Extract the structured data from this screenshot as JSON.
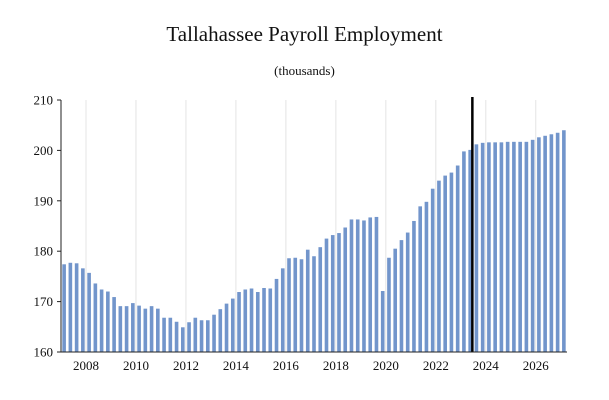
{
  "chart_data": {
    "type": "bar",
    "title": "Tallahassee Payroll Employment",
    "subtitle": "(thousands)",
    "xlabel": "",
    "ylabel": "",
    "ylim": [
      160,
      210
    ],
    "yticks": [
      160,
      170,
      180,
      190,
      200,
      210
    ],
    "xtick_labels": [
      "2008",
      "2010",
      "2012",
      "2014",
      "2016",
      "2018",
      "2020",
      "2022",
      "2024",
      "2026"
    ],
    "grid": "vertical",
    "bar_color": "#7295cb",
    "forecast_marker_color": "#000000",
    "forecast_marker_position": "2023Q3",
    "categories": [
      "2007Q1",
      "2007Q2",
      "2007Q3",
      "2007Q4",
      "2008Q1",
      "2008Q2",
      "2008Q3",
      "2008Q4",
      "2009Q1",
      "2009Q2",
      "2009Q3",
      "2009Q4",
      "2010Q1",
      "2010Q2",
      "2010Q3",
      "2010Q4",
      "2011Q1",
      "2011Q2",
      "2011Q3",
      "2011Q4",
      "2012Q1",
      "2012Q2",
      "2012Q3",
      "2012Q4",
      "2013Q1",
      "2013Q2",
      "2013Q3",
      "2013Q4",
      "2014Q1",
      "2014Q2",
      "2014Q3",
      "2014Q4",
      "2015Q1",
      "2015Q2",
      "2015Q3",
      "2015Q4",
      "2016Q1",
      "2016Q2",
      "2016Q3",
      "2016Q4",
      "2017Q1",
      "2017Q2",
      "2017Q3",
      "2017Q4",
      "2018Q1",
      "2018Q2",
      "2018Q3",
      "2018Q4",
      "2019Q1",
      "2019Q2",
      "2019Q3",
      "2019Q4",
      "2020Q1",
      "2020Q2",
      "2020Q3",
      "2020Q4",
      "2021Q1",
      "2021Q2",
      "2021Q3",
      "2021Q4",
      "2022Q1",
      "2022Q2",
      "2022Q3",
      "2022Q4",
      "2023Q1",
      "2023Q2",
      "2023Q3",
      "2023Q4",
      "2024Q1",
      "2024Q2",
      "2024Q3",
      "2024Q4",
      "2025Q1",
      "2025Q2",
      "2025Q3",
      "2025Q4",
      "2026Q1",
      "2026Q2",
      "2026Q3",
      "2026Q4",
      "2027Q1"
    ],
    "values": [
      177.4,
      177.7,
      177.6,
      176.6,
      175.7,
      173.6,
      172.4,
      172.0,
      170.9,
      169.1,
      169.1,
      169.7,
      169.2,
      168.6,
      169.1,
      168.6,
      166.8,
      166.8,
      166.0,
      164.9,
      165.9,
      166.8,
      166.3,
      166.3,
      167.4,
      168.5,
      169.6,
      170.6,
      171.9,
      172.4,
      172.6,
      171.9,
      172.7,
      172.6,
      174.5,
      176.6,
      178.6,
      178.7,
      178.4,
      180.3,
      179.0,
      180.8,
      182.5,
      183.2,
      183.6,
      184.7,
      186.3,
      186.3,
      186.1,
      186.7,
      186.8,
      172.1,
      178.7,
      180.5,
      182.2,
      183.7,
      186.0,
      188.9,
      189.8,
      192.4,
      194.0,
      195.0,
      195.6,
      197.0,
      199.8,
      200.1,
      201.2,
      201.5,
      201.6,
      201.6,
      201.6,
      201.7,
      201.7,
      201.7,
      201.7,
      202.1,
      202.6,
      202.9,
      203.2,
      203.5,
      204.0
    ]
  }
}
